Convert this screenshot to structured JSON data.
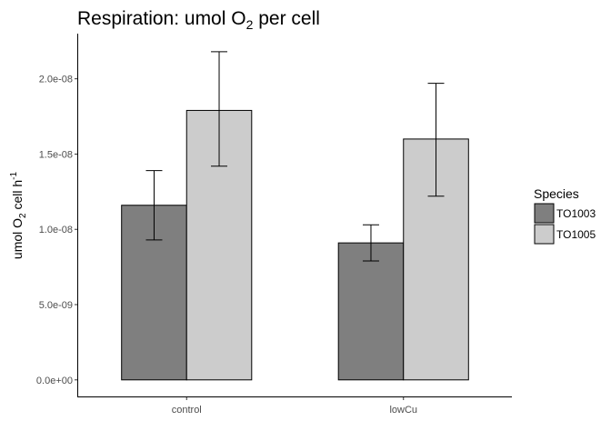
{
  "chart_data": {
    "type": "bar",
    "title": {
      "text": "Respiration: umol O",
      "sub": "2",
      "suffix": " per cell"
    },
    "ylabel": {
      "text": "umol  O",
      "sub": "2",
      "unit": " cell h",
      "sup": "-1"
    },
    "xlabel": "",
    "categories": [
      "control",
      "lowCu"
    ],
    "ylim": [
      -1.1e-09,
      2.3e-08
    ],
    "yticks": [
      0,
      5e-09,
      1e-08,
      1.5e-08,
      2e-08
    ],
    "ytick_labels": [
      "0.0e+00",
      "5.0e-09",
      "1.0e-08",
      "1.5e-08",
      "2.0e-08"
    ],
    "legend": {
      "title": "Species",
      "placement": "right"
    },
    "grid": false,
    "series": [
      {
        "name": "TO1003",
        "color": "#7f7f7f",
        "values": [
          1.16e-08,
          9.1e-09
        ],
        "err_low": [
          9.3e-09,
          7.9e-09
        ],
        "err_high": [
          1.39e-08,
          1.03e-08
        ]
      },
      {
        "name": "TO1005",
        "color": "#cccccc",
        "values": [
          1.79e-08,
          1.6e-08
        ],
        "err_low": [
          1.42e-08,
          1.22e-08
        ],
        "err_high": [
          2.18e-08,
          1.97e-08
        ]
      }
    ]
  }
}
